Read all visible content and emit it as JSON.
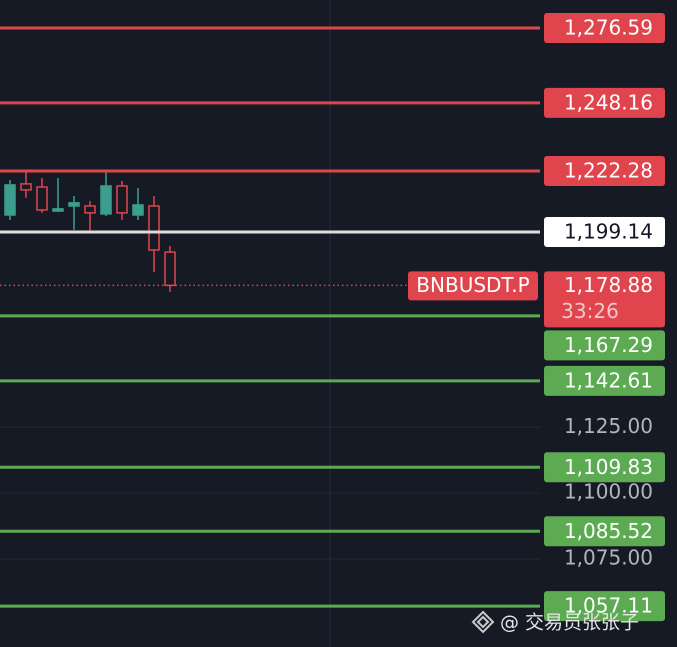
{
  "chart_data": {
    "type": "candlestick",
    "open": [
      1205.6,
      1217.4,
      1216.2,
      1207.1,
      1209.0,
      1209.0,
      1206.0,
      1216.6,
      1205.6,
      1209.0,
      1191.5
    ],
    "high": [
      1218.9,
      1221.9,
      1219.6,
      1219.6,
      1212.8,
      1210.9,
      1221.9,
      1218.5,
      1215.8,
      1212.8,
      1193.8
    ],
    "low": [
      1203.7,
      1212.1,
      1206.4,
      1206.7,
      1199.9,
      1199.1,
      1205.2,
      1203.7,
      1203.7,
      1184.0,
      1176.4
    ],
    "close": [
      1217.0,
      1215.1,
      1207.5,
      1207.9,
      1210.2,
      1206.4,
      1216.6,
      1206.4,
      1209.4,
      1192.3,
      1178.88
    ],
    "up_color": "#3b9e8f",
    "down_color": "#e0454e",
    "ylim": [
      1041.6,
      1287.2
    ],
    "yticks": [
      {
        "value": 1125,
        "label": "1,125.00"
      },
      {
        "value": 1100,
        "label": "1,100.00"
      },
      {
        "value": 1075,
        "label": "1,075.00"
      }
    ],
    "grid": true,
    "levels": {
      "values": [
        1276.59,
        1248.16,
        1222.28,
        1199.14,
        1167.29,
        1142.61,
        1109.83,
        1085.52,
        1057.11
      ],
      "value_labels": [
        "1,276.59",
        "1,248.16",
        "1,222.28",
        "1,199.14",
        "1,167.29",
        "1,142.61",
        "1,109.83",
        "1,085.52",
        "1,057.11"
      ],
      "colors": [
        "#e0454e",
        "#e0454e",
        "#e0454e",
        "#dddddd",
        "#5cab52",
        "#5cab52",
        "#5cab52",
        "#5cab52",
        "#5cab52"
      ]
    },
    "last_price": {
      "value": 1178.88,
      "value_label": "1,178.88",
      "symbol": "BNBUSDT.P",
      "countdown": "33:26",
      "color": "#e0454e"
    },
    "watermark": "@ 交易员张张子"
  }
}
